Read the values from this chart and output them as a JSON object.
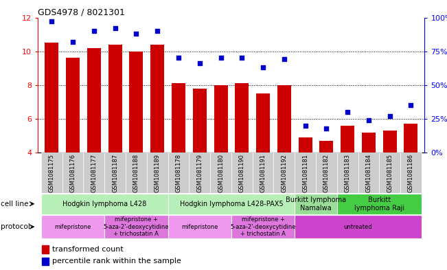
{
  "title": "GDS4978 / 8021301",
  "samples": [
    "GSM1081175",
    "GSM1081176",
    "GSM1081177",
    "GSM1081187",
    "GSM1081188",
    "GSM1081189",
    "GSM1081178",
    "GSM1081179",
    "GSM1081180",
    "GSM1081190",
    "GSM1081191",
    "GSM1081192",
    "GSM1081181",
    "GSM1081182",
    "GSM1081183",
    "GSM1081184",
    "GSM1081185",
    "GSM1081186"
  ],
  "bar_values": [
    10.5,
    9.6,
    10.2,
    10.4,
    10.0,
    10.4,
    8.1,
    7.8,
    8.0,
    8.1,
    7.5,
    8.0,
    4.9,
    4.7,
    5.6,
    5.2,
    5.3,
    5.7
  ],
  "dot_values": [
    97,
    82,
    90,
    92,
    88,
    90,
    70,
    66,
    70,
    70,
    63,
    69,
    20,
    18,
    30,
    24,
    27,
    35
  ],
  "ylim_left": [
    4,
    12
  ],
  "ylim_right": [
    0,
    100
  ],
  "yticks_left": [
    4,
    6,
    8,
    10,
    12
  ],
  "yticks_right": [
    0,
    25,
    50,
    75,
    100
  ],
  "ytick_labels_right": [
    "0%",
    "25%",
    "50%",
    "75%",
    "100%"
  ],
  "bar_color": "#cc0000",
  "dot_color": "#0000cc",
  "grid_lines": [
    6,
    8,
    10
  ],
  "cell_line_groups": [
    {
      "label": "Hodgkin lymphoma L428",
      "start": 0,
      "end": 6,
      "color": "#b8eeb8"
    },
    {
      "label": "Hodgkin lymphoma L428-PAX5",
      "start": 6,
      "end": 12,
      "color": "#b8eeb8"
    },
    {
      "label": "Burkitt lymphoma\nNamalwa",
      "start": 12,
      "end": 14,
      "color": "#99dd99"
    },
    {
      "label": "Burkitt\nlymphoma Raji",
      "start": 14,
      "end": 18,
      "color": "#44cc44"
    }
  ],
  "protocol_groups": [
    {
      "label": "mifepristone",
      "start": 0,
      "end": 3,
      "color": "#ee99ee"
    },
    {
      "label": "mifepristone +\n5-aza-2'-deoxycytidine\n+ trichostatin A",
      "start": 3,
      "end": 6,
      "color": "#dd77dd"
    },
    {
      "label": "mifepristone",
      "start": 6,
      "end": 9,
      "color": "#ee99ee"
    },
    {
      "label": "mifepristone +\n5-aza-2'-deoxycytidine\n+ trichostatin A",
      "start": 9,
      "end": 12,
      "color": "#dd77dd"
    },
    {
      "label": "untreated",
      "start": 12,
      "end": 18,
      "color": "#cc44cc"
    }
  ],
  "legend_bar_label": "transformed count",
  "legend_dot_label": "percentile rank within the sample",
  "cell_line_label": "cell line",
  "protocol_label": "protocol",
  "xtick_bg_color": "#cccccc",
  "left_label_color": "#444444",
  "title_fontsize": 9,
  "bar_fontsize": 6,
  "annotation_fontsize": 7,
  "protocol_fontsize": 6
}
